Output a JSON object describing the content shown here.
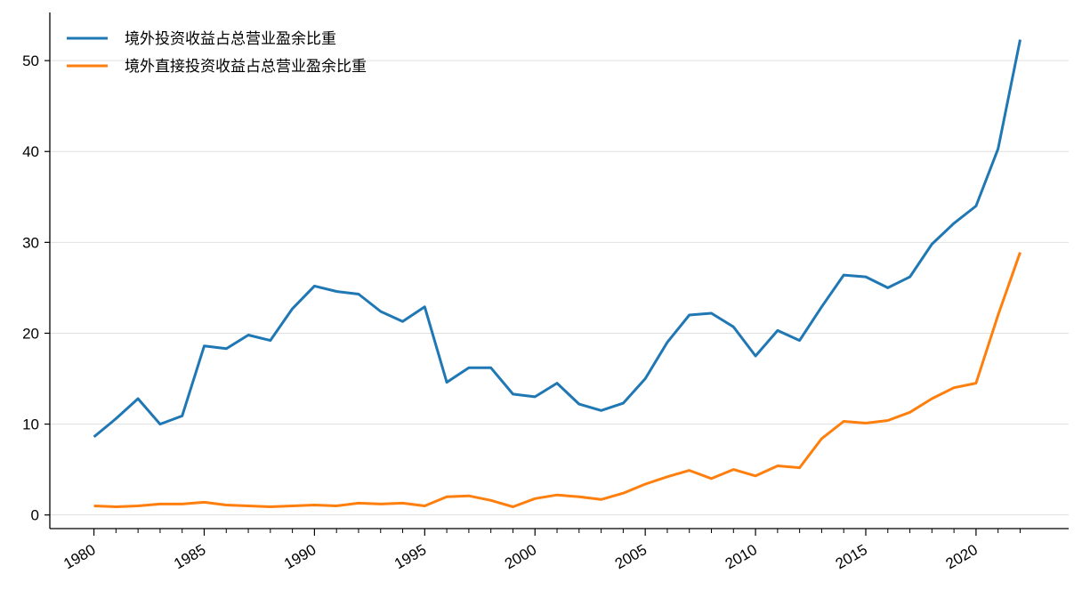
{
  "chart_data": {
    "type": "line",
    "title": "",
    "xlabel": "",
    "ylabel": "",
    "x": [
      1980,
      1981,
      1982,
      1983,
      1984,
      1985,
      1986,
      1987,
      1988,
      1989,
      1990,
      1991,
      1992,
      1993,
      1994,
      1995,
      1996,
      1997,
      1998,
      1999,
      2000,
      2001,
      2002,
      2003,
      2004,
      2005,
      2006,
      2007,
      2008,
      2009,
      2010,
      2011,
      2012,
      2013,
      2014,
      2015,
      2016,
      2017,
      2018,
      2019,
      2020,
      2021,
      2022
    ],
    "xticks": [
      "1980",
      "1985",
      "1990",
      "1995",
      "2000",
      "2005",
      "2010",
      "2015",
      "2020"
    ],
    "yticks": [
      "0",
      "10",
      "20",
      "30",
      "40",
      "50"
    ],
    "xlim": [
      1978,
      2024.2
    ],
    "ylim": [
      -1.5,
      55.3
    ],
    "grid": "horizontal",
    "legend_position": "top-left",
    "series": [
      {
        "name": "境外投资收益占总营业盈余比重",
        "color": "#1f77b4",
        "values": [
          8.6,
          10.6,
          12.8,
          10.0,
          10.9,
          18.6,
          18.3,
          19.8,
          19.2,
          22.7,
          25.2,
          24.6,
          24.3,
          22.4,
          21.3,
          22.9,
          14.6,
          16.2,
          16.2,
          13.3,
          13.0,
          14.5,
          12.2,
          11.5,
          12.3,
          15.0,
          19.0,
          22.0,
          22.2,
          20.7,
          17.5,
          20.3,
          19.2,
          22.9,
          26.4,
          26.2,
          25.0,
          26.2,
          29.8,
          32.1,
          34.0,
          40.3,
          52.3
        ]
      },
      {
        "name": "境外直接投资收益占总营业盈余比重",
        "color": "#ff7f0e",
        "values": [
          1.0,
          0.9,
          1.0,
          1.2,
          1.2,
          1.4,
          1.1,
          1.0,
          0.9,
          1.0,
          1.1,
          1.0,
          1.3,
          1.2,
          1.3,
          1.0,
          2.0,
          2.1,
          1.6,
          0.9,
          1.8,
          2.2,
          2.0,
          1.7,
          2.4,
          3.4,
          4.2,
          4.9,
          4.0,
          5.0,
          4.3,
          5.4,
          5.2,
          8.4,
          10.3,
          10.1,
          10.4,
          11.3,
          12.8,
          14.0,
          14.5,
          22.0,
          28.9
        ]
      }
    ]
  }
}
